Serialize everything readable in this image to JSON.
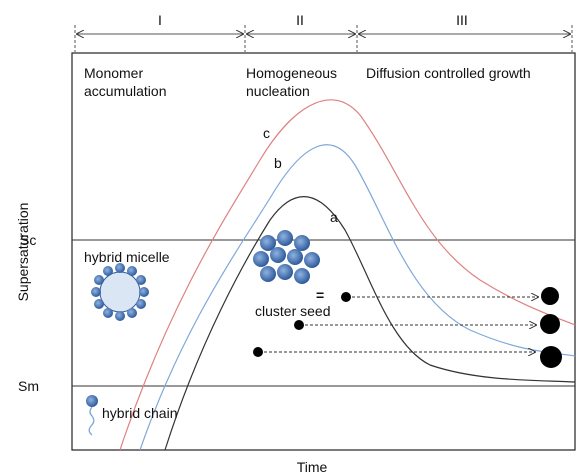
{
  "stages": {
    "labels": [
      "I",
      "II",
      "III"
    ]
  },
  "regions": {
    "monomer": [
      "Monomer",
      "accumulation"
    ],
    "nucleation": [
      "Homogeneous",
      "nucleation"
    ],
    "growth": "Diffusion controlled growth"
  },
  "curves": {
    "labels": [
      "c",
      "b",
      "a"
    ]
  },
  "axes": {
    "y_label": "Supersaturation",
    "x_label": "Time",
    "levels": [
      "Sc",
      "Sm"
    ]
  },
  "annotations": {
    "micelle": "hybrid micelle",
    "seed": "cluster seed",
    "chain": "hybrid chain",
    "equals": "="
  }
}
